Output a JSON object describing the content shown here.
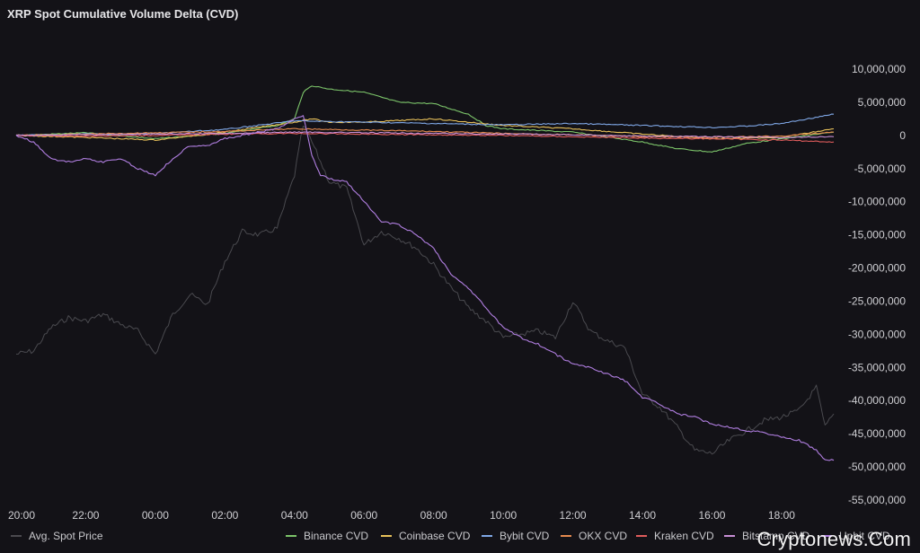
{
  "title": "XRP Spot Cumulative Volume Delta (CVD)",
  "watermark": "Cryptonews.Com",
  "chart_data": {
    "type": "line",
    "title": "XRP Spot Cumulative Volume Delta (CVD)",
    "xlabel": "",
    "ylabel": "",
    "x_ticks": [
      "20:00",
      "22:00",
      "00:00",
      "02:00",
      "04:00",
      "06:00",
      "08:00",
      "10:00",
      "12:00",
      "14:00",
      "16:00",
      "18:00"
    ],
    "y_ticks": [
      "10,000,000",
      "5,000,000",
      "0",
      "-5,000,000",
      "-10,000,000",
      "-15,000,000",
      "-20,000,000",
      "-25,000,000",
      "-30,000,000",
      "-35,000,000",
      "-40,000,000",
      "-45,000,000",
      "-50,000,000",
      "-55,000,000"
    ],
    "ylim": [
      -55000000,
      10000000
    ],
    "xlim": [
      "20:00",
      "19:30"
    ],
    "grid": false,
    "legend_position": "bottom",
    "series": [
      {
        "name": "Avg. Spot Price",
        "color": "#4a4a4f",
        "axis": "price (unlabeled)",
        "x": [
          "20:00",
          "20:30",
          "21:00",
          "21:30",
          "22:00",
          "22:30",
          "23:00",
          "23:30",
          "00:00",
          "00:30",
          "01:00",
          "01:30",
          "02:00",
          "02:30",
          "03:00",
          "03:30",
          "04:00",
          "04:15",
          "04:30",
          "05:00",
          "05:30",
          "06:00",
          "06:30",
          "07:00",
          "07:30",
          "08:00",
          "08:30",
          "09:00",
          "09:30",
          "10:00",
          "10:30",
          "11:00",
          "11:30",
          "12:00",
          "12:30",
          "13:00",
          "13:30",
          "14:00",
          "14:30",
          "15:00",
          "15:30",
          "16:00",
          "16:30",
          "17:00",
          "17:30",
          "18:00",
          "18:30",
          "19:00",
          "19:15",
          "19:30"
        ],
        "values": [
          -33000000,
          -32500000,
          -29000000,
          -27500000,
          -28000000,
          -27000000,
          -28500000,
          -29500000,
          -33000000,
          -27000000,
          -24000000,
          -25500000,
          -19000000,
          -14500000,
          -15000000,
          -14000000,
          -6000000,
          1500000,
          -1000000,
          -7000000,
          -8000000,
          -16500000,
          -14500000,
          -15500000,
          -17000000,
          -19500000,
          -23000000,
          -26000000,
          -28000000,
          -30500000,
          -30000000,
          -29500000,
          -30500000,
          -25000000,
          -29500000,
          -31000000,
          -32000000,
          -39000000,
          -41000000,
          -44000000,
          -47500000,
          -48000000,
          -46000000,
          -44500000,
          -43000000,
          -42500000,
          -41500000,
          -38000000,
          -44000000,
          -42000000
        ]
      },
      {
        "name": "Binance CVD",
        "color": "#7cc46a",
        "x": [
          "20:00",
          "22:00",
          "00:00",
          "02:00",
          "03:30",
          "04:00",
          "04:15",
          "04:30",
          "05:00",
          "06:00",
          "07:00",
          "08:00",
          "09:00",
          "09:30",
          "10:00",
          "12:00",
          "14:00",
          "15:00",
          "16:00",
          "17:00",
          "18:00",
          "19:30"
        ],
        "values": [
          0,
          400000,
          -500000,
          300000,
          1500000,
          2500000,
          6500000,
          7500000,
          7000000,
          6500000,
          5000000,
          4800000,
          3200000,
          1500000,
          1000000,
          500000,
          -1000000,
          -2000000,
          -2500000,
          -1200000,
          -500000,
          500000
        ]
      },
      {
        "name": "Coinbase CVD",
        "color": "#e8c15a",
        "x": [
          "20:00",
          "22:00",
          "00:00",
          "02:00",
          "04:00",
          "04:30",
          "05:00",
          "06:00",
          "08:00",
          "10:00",
          "12:00",
          "14:00",
          "16:00",
          "18:00",
          "19:30"
        ],
        "values": [
          0,
          -300000,
          -700000,
          500000,
          2000000,
          2500000,
          2000000,
          2000000,
          2500000,
          1500000,
          1000000,
          200000,
          -500000,
          -300000,
          1000000
        ]
      },
      {
        "name": "Bybit CVD",
        "color": "#7fa7e6",
        "x": [
          "20:00",
          "22:00",
          "00:00",
          "02:00",
          "04:00",
          "06:00",
          "08:00",
          "10:00",
          "12:00",
          "14:00",
          "16:00",
          "17:00",
          "18:00",
          "19:30"
        ],
        "values": [
          0,
          200000,
          300000,
          900000,
          2200000,
          2000000,
          1800000,
          1600000,
          1800000,
          1500000,
          1200000,
          1400000,
          1800000,
          3200000
        ]
      },
      {
        "name": "OKX CVD",
        "color": "#e58a4e",
        "x": [
          "20:00",
          "22:00",
          "00:00",
          "02:00",
          "04:00",
          "06:00",
          "08:00",
          "10:00",
          "12:00",
          "14:00",
          "16:00",
          "18:00",
          "19:30"
        ],
        "values": [
          0,
          200000,
          400000,
          600000,
          1000000,
          800000,
          600000,
          300000,
          100000,
          -200000,
          -300000,
          -100000,
          500000
        ]
      },
      {
        "name": "Kraken CVD",
        "color": "#e05c5c",
        "x": [
          "20:00",
          "22:00",
          "00:00",
          "02:00",
          "04:00",
          "06:00",
          "08:00",
          "10:00",
          "12:00",
          "14:00",
          "16:00",
          "18:00",
          "19:30"
        ],
        "values": [
          0,
          -100000,
          0,
          200000,
          300000,
          200000,
          100000,
          0,
          -200000,
          -400000,
          -500000,
          -700000,
          -1000000
        ]
      },
      {
        "name": "Bitstamp CVD",
        "color": "#c98fd6",
        "x": [
          "20:00",
          "22:00",
          "00:00",
          "02:00",
          "04:00",
          "06:00",
          "08:00",
          "10:00",
          "12:00",
          "14:00",
          "16:00",
          "18:00",
          "19:30"
        ],
        "values": [
          0,
          100000,
          200000,
          300000,
          500000,
          400000,
          300000,
          200000,
          100000,
          -100000,
          -200000,
          -300000,
          -200000
        ]
      },
      {
        "name": "Upbit CVD",
        "color": "#b07ee0",
        "x": [
          "20:00",
          "20:30",
          "21:00",
          "21:30",
          "22:00",
          "22:30",
          "23:00",
          "23:30",
          "00:00",
          "00:30",
          "01:00",
          "01:30",
          "02:00",
          "02:30",
          "03:00",
          "03:30",
          "04:00",
          "04:15",
          "04:30",
          "04:45",
          "05:00",
          "05:30",
          "06:00",
          "06:30",
          "07:00",
          "07:30",
          "08:00",
          "08:30",
          "09:00",
          "09:30",
          "10:00",
          "10:30",
          "11:00",
          "11:30",
          "12:00",
          "12:30",
          "13:00",
          "13:30",
          "14:00",
          "14:30",
          "15:00",
          "15:30",
          "16:00",
          "16:30",
          "17:00",
          "17:30",
          "18:00",
          "18:30",
          "19:00",
          "19:15",
          "19:30"
        ],
        "values": [
          0,
          -1000000,
          -3500000,
          -4000000,
          -3500000,
          -4000000,
          -3500000,
          -5000000,
          -6000000,
          -3500000,
          -1500000,
          -1500000,
          -500000,
          0,
          500000,
          1000000,
          2500000,
          3000000,
          -3000000,
          -6000000,
          -6500000,
          -7000000,
          -10000000,
          -13000000,
          -13500000,
          -15000000,
          -17000000,
          -21000000,
          -23000000,
          -26000000,
          -29000000,
          -30500000,
          -31500000,
          -33000000,
          -34500000,
          -35000000,
          -36000000,
          -37000000,
          -39500000,
          -40500000,
          -42000000,
          -42500000,
          -43500000,
          -44000000,
          -44500000,
          -44800000,
          -45500000,
          -46000000,
          -47500000,
          -49000000,
          -49000000
        ]
      }
    ]
  }
}
